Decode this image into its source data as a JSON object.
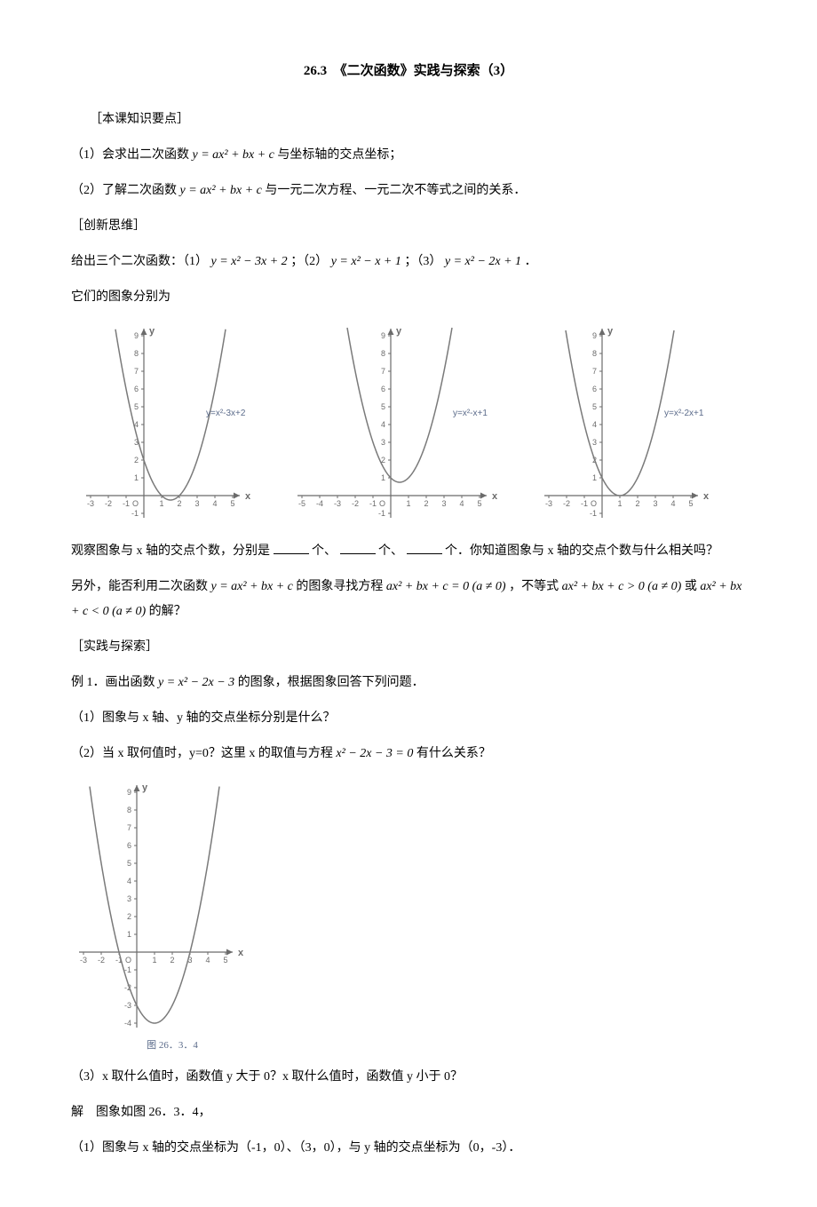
{
  "title": "26.3　《二次函数》实践与探索（3）",
  "section1": "［本课知识要点］",
  "p1_a": "（1）会求出二次函数",
  "p1_b": " 与坐标轴的交点坐标；",
  "p2_a": "（2）了解二次函数",
  "p2_b": " 与一元二次方程、一元二次不等式之间的关系．",
  "section2": "［创新思维］",
  "p3_a": "给出三个二次函数：（1）",
  "p3_b": "；（2）",
  "p3_c": "；（3）",
  "p3_d": "．",
  "p4": "它们的图象分别为",
  "f_quad": "y = ax² + bx + c",
  "f1": "y = x² − 3x + 2",
  "f2": "y = x² − x + 1",
  "f3": "y = x² − 2x + 1",
  "chart1": {
    "label": "y=x²-3x+2",
    "a": 1,
    "b": -3,
    "c": 2,
    "xmin": -3,
    "xmax": 5,
    "ymin": -1,
    "ymax": 9,
    "curve_color": "#7a7a7a",
    "axis_color": "#6b6b6b",
    "label_color": "#5b6b8a"
  },
  "chart2": {
    "label": "y=x²-x+1",
    "a": 1,
    "b": -1,
    "c": 1,
    "xmin": -5,
    "xmax": 5,
    "ymin": -1,
    "ymax": 9,
    "curve_color": "#7a7a7a",
    "axis_color": "#6b6b6b",
    "label_color": "#5b6b8a"
  },
  "chart3": {
    "label": "y=x²-2x+1",
    "a": 1,
    "b": -2,
    "c": 1,
    "xmin": -3,
    "xmax": 5,
    "ymin": -1,
    "ymax": 9,
    "curve_color": "#7a7a7a",
    "axis_color": "#6b6b6b",
    "label_color": "#5b6b8a"
  },
  "p5_a": "观察图象与 x 轴的交点个数，分别是",
  "p5_b": "个、",
  "p5_c": "个、",
  "p5_d": "个．你知道图象与 x 轴的交点个数与什么相关吗？",
  "p6_a": "另外，能否利用二次函数",
  "p6_b": " 的图象寻找方程",
  "p6_c": "，不等式",
  "p6_d": " 或",
  "p6_e": " 的解？",
  "f_eq": "ax² + bx + c = 0 (a ≠ 0)",
  "f_gt": "ax² + bx + c > 0 (a ≠ 0)",
  "f_lt": "ax² + bx + c < 0 (a ≠ 0)",
  "section3": "［实践与探索］",
  "p7_a": "例 1．画出函数",
  "p7_b": "的图象，根据图象回答下列问题．",
  "f4": "y = x² − 2x − 3",
  "p8": "（1）图象与 x 轴、y 轴的交点坐标分别是什么？",
  "p9_a": "（2）当 x 取何值时，y=0？这里 x 的取值与方程",
  "p9_b": "有什么关系？",
  "f5": "x² − 2x − 3 = 0",
  "chart4": {
    "label": "",
    "caption": "图 26．3．4",
    "a": 1,
    "b": -2,
    "c": -3,
    "xmin": -3,
    "xmax": 5,
    "ymin": -4,
    "ymax": 9,
    "curve_color": "#7a7a7a",
    "axis_color": "#6b6b6b",
    "label_color": "#5b6b8a",
    "caption_color": "#5b6b8a"
  },
  "p10": "（3）x 取什么值时，函数值 y 大于 0？x 取什么值时，函数值 y 小于 0？",
  "p11": "解　图象如图 26．3．4，",
  "p12": "（1）图象与 x 轴的交点坐标为（-1，0）、（3，0），与 y 轴的交点坐标为（0，-3）．",
  "svg_style": {
    "unit": 20,
    "font_family": "Arial, sans-serif",
    "tick_font_size": 9,
    "axis_label_font_size": 11,
    "curve_label_font_size": 10,
    "stroke_width": 1.2,
    "tick_len": 3
  }
}
